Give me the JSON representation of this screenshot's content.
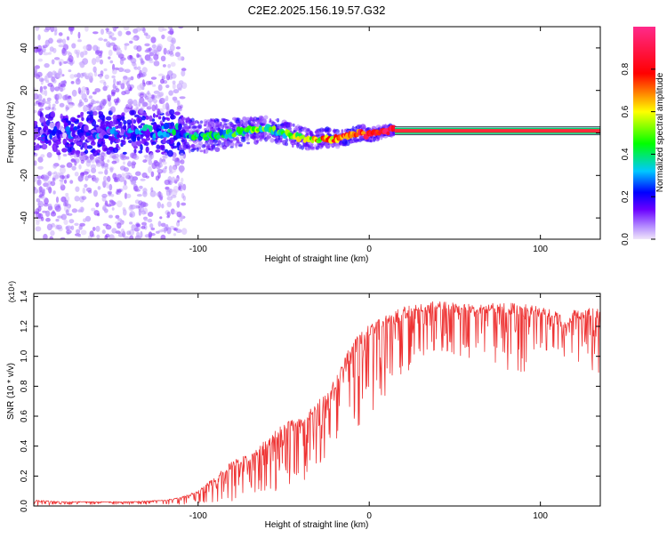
{
  "figure_title": "C2E2.2025.156.19.57.G32",
  "chart_data": [
    {
      "type": "heatmap",
      "title": "C2E2.2025.156.19.57.G32",
      "xlabel": "Height of straight line (km)",
      "ylabel": "Frequency (Hz)",
      "xlim": [
        -196,
        135
      ],
      "ylim": [
        -50,
        50
      ],
      "x_ticks": [
        -100,
        0,
        100
      ],
      "y_ticks": [
        -40,
        -20,
        0,
        20,
        40
      ],
      "colorbar": {
        "label": "Normalized spectral amplitude",
        "range": [
          0.0,
          1.0
        ],
        "ticks": [
          0.0,
          0.2,
          0.4,
          0.6,
          0.8
        ],
        "colormap": [
          "#f0e6fa",
          "#7a00ff",
          "#0000ff",
          "#00c8ff",
          "#00ff00",
          "#ffff00",
          "#ff0000",
          "#ff2a8a"
        ]
      },
      "ridge": {
        "x": [
          -196,
          -180,
          -160,
          -140,
          -120,
          -110,
          -100,
          -90,
          -80,
          -70,
          -60,
          -55,
          -50,
          -45,
          -40,
          -35,
          -30,
          -25,
          -20,
          -15,
          -10,
          -5,
          0,
          5,
          10,
          15,
          135
        ],
        "frequency": [
          0,
          1,
          -1,
          0,
          1,
          0,
          -2,
          -1,
          0,
          1,
          2,
          1,
          0,
          -1,
          -2,
          -3,
          -3,
          -2,
          -3,
          -2,
          -1,
          0,
          -1,
          0,
          1,
          1,
          1
        ],
        "amplitude": [
          0.15,
          0.15,
          0.18,
          0.2,
          0.25,
          0.3,
          0.35,
          0.38,
          0.4,
          0.42,
          0.45,
          0.4,
          0.45,
          0.5,
          0.55,
          0.55,
          0.6,
          0.65,
          0.7,
          0.75,
          0.72,
          0.78,
          0.8,
          0.8,
          0.85,
          0.95,
          0.95
        ]
      },
      "grid": false
    },
    {
      "type": "line",
      "xlabel": "Height of straight line (km)",
      "ylabel": "SNR (10 * v/v)",
      "y_multiplier": "(x10⁴)",
      "xlim": [
        -196,
        135
      ],
      "ylim": [
        0.0,
        1.42
      ],
      "x_ticks": [
        -100,
        0,
        100
      ],
      "y_ticks": [
        0.0,
        0.2,
        0.4,
        0.6,
        0.8,
        1.0,
        1.2,
        1.4
      ],
      "color": "#ee3333",
      "series": [
        {
          "x": [
            -196,
            -180,
            -160,
            -140,
            -120,
            -110,
            -100,
            -90,
            -80,
            -70,
            -60,
            -50,
            -40,
            -30,
            -20,
            -10,
            0,
            10,
            20,
            30,
            40,
            50,
            60,
            70,
            80,
            90,
            100,
            110,
            115,
            120,
            125,
            130,
            135
          ],
          "upper": [
            0.04,
            0.03,
            0.03,
            0.03,
            0.04,
            0.06,
            0.1,
            0.2,
            0.3,
            0.35,
            0.45,
            0.55,
            0.6,
            0.7,
            0.85,
            1.1,
            1.25,
            1.28,
            1.33,
            1.36,
            1.37,
            1.36,
            1.35,
            1.36,
            1.36,
            1.35,
            1.33,
            1.3,
            1.22,
            1.32,
            1.3,
            1.33,
            1.33
          ],
          "lower": [
            0.0,
            0.01,
            0.01,
            0.01,
            0.01,
            0.01,
            0.02,
            0.02,
            0.03,
            0.05,
            0.08,
            0.12,
            0.15,
            0.25,
            0.35,
            0.5,
            0.6,
            0.75,
            0.85,
            1.0,
            1.05,
            1.0,
            0.95,
            0.9,
            0.85,
            0.88,
            0.95,
            1.05,
            0.98,
            0.9,
            1.0,
            0.9,
            0.88
          ]
        }
      ],
      "grid": false
    }
  ]
}
